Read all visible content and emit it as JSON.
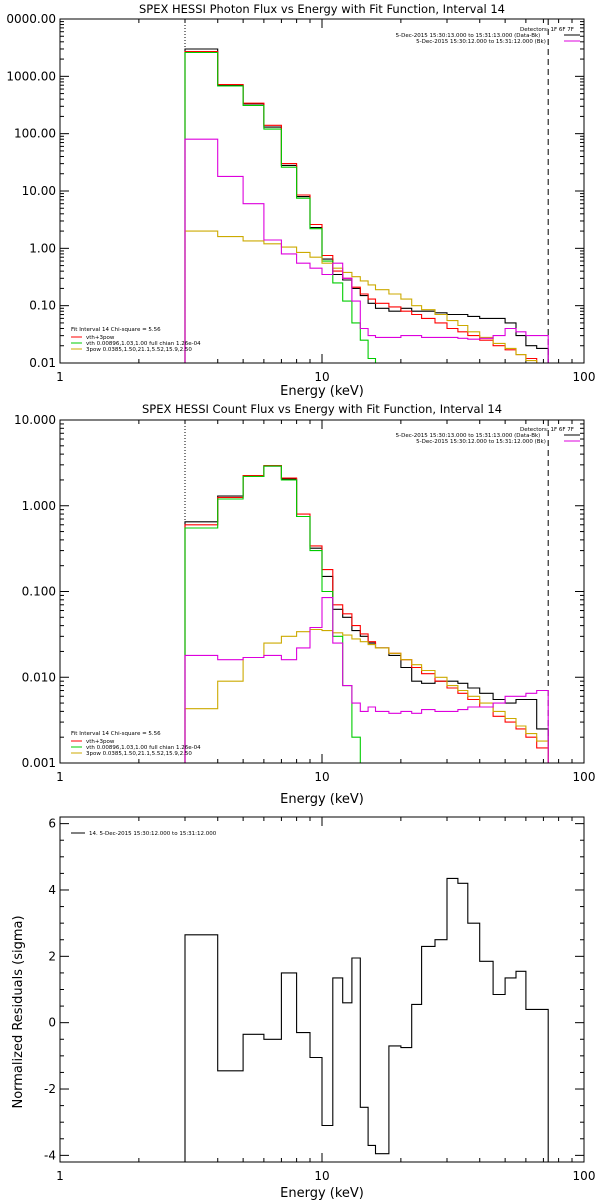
{
  "chart_data": [
    {
      "type": "line",
      "title": "SPEX HESSI Photon Flux vs Energy with Fit Function, Interval 14",
      "xlabel": "Energy (keV)",
      "ylabel": "",
      "x_scale": "log",
      "y_scale": "log",
      "xlim": [
        1,
        100
      ],
      "ylim": [
        0.01,
        10000
      ],
      "x_ticks": [
        "1",
        "10",
        "100"
      ],
      "y_ticks": [
        "0000.00",
        "1000.00",
        "100.00",
        "10.00",
        "1.00",
        "0.10",
        "0.01"
      ],
      "y_tick_values": [
        10000,
        1000,
        100,
        10,
        1,
        0.1,
        0.01
      ],
      "markers": [
        {
          "x": 3.0,
          "style": "dotted"
        },
        {
          "x": 73.0,
          "style": "dashed"
        }
      ],
      "legend_top": [
        "Detectors: 1F 6F 7F",
        "5-Dec-2015 15:30:13.000 to 15:31:13.000 (Data-Bk)",
        "5-Dec-2015 15:30:12.000 to 15:31:12.000 (Bk)"
      ],
      "legend_top_series": [
        null,
        "data",
        "bk"
      ],
      "legend_bottom": [
        "Fit Interval 14   Chi-square = 5.56",
        "vth+3pow",
        "vth 0.00896,1.03,1.00  full chian 1.26e-04",
        "3pow 0.0385,1.50,21.1,5.52,15.9,2.50"
      ],
      "legend_bottom_series": [
        null,
        "total",
        "vth",
        "3pow"
      ],
      "edges": [
        3.0,
        3.5,
        4.0,
        5.0,
        6.0,
        7.0,
        8.0,
        9.0,
        10.0,
        11.0,
        12.0,
        13.0,
        14.0,
        15.0,
        16.0,
        18.0,
        20.0,
        22.0,
        24.0,
        27.0,
        30.0,
        33.0,
        36.0,
        40.0,
        45.0,
        50.0,
        55.0,
        60.0,
        66.0,
        73.0
      ],
      "series": [
        {
          "key": "data",
          "color": "#000000",
          "values": [
            3000,
            3000,
            700,
            330,
            130,
            28,
            8.0,
            2.3,
            0.65,
            0.35,
            0.28,
            0.2,
            0.15,
            0.11,
            0.09,
            0.08,
            0.09,
            0.08,
            0.08,
            0.075,
            0.07,
            0.07,
            0.065,
            0.06,
            0.06,
            0.05,
            0.03,
            0.02,
            0.018
          ]
        },
        {
          "key": "total",
          "color": "#ff0000",
          "values": [
            2700,
            2700,
            720,
            340,
            140,
            30,
            8.5,
            2.6,
            0.75,
            0.4,
            0.3,
            0.21,
            0.16,
            0.13,
            0.11,
            0.095,
            0.08,
            0.07,
            0.06,
            0.05,
            0.04,
            0.035,
            0.03,
            0.025,
            0.02,
            0.017,
            0.014,
            0.012,
            0.01
          ]
        },
        {
          "key": "vth",
          "color": "#00cc00",
          "values": [
            2600,
            2600,
            680,
            310,
            120,
            26,
            7.5,
            2.2,
            0.6,
            0.25,
            0.12,
            0.05,
            0.025,
            0.012,
            0.0095,
            0.009,
            0.009,
            0.009,
            0.009,
            0.009,
            0.009,
            0.009,
            0.009,
            0.009,
            0.009,
            0.009,
            0.009,
            0.009,
            0.009
          ]
        },
        {
          "key": "3pow",
          "color": "#ccaa00",
          "values": [
            2.0,
            2.0,
            1.6,
            1.35,
            1.2,
            1.05,
            0.85,
            0.7,
            0.55,
            0.45,
            0.38,
            0.32,
            0.27,
            0.23,
            0.19,
            0.16,
            0.13,
            0.1,
            0.085,
            0.07,
            0.055,
            0.045,
            0.035,
            0.028,
            0.022,
            0.018,
            0.014,
            0.011,
            0.009
          ]
        },
        {
          "key": "bk",
          "color": "#dd00dd",
          "values": [
            80,
            80,
            18,
            6.0,
            1.4,
            0.8,
            0.55,
            0.45,
            0.35,
            0.55,
            0.3,
            0.12,
            0.04,
            0.03,
            0.028,
            0.028,
            0.03,
            0.03,
            0.028,
            0.028,
            0.028,
            0.027,
            0.026,
            0.027,
            0.03,
            0.04,
            0.035,
            0.03,
            0.03
          ]
        }
      ]
    },
    {
      "type": "line",
      "title": "SPEX HESSI Count Flux vs Energy with Fit Function, Interval 14",
      "xlabel": "Energy (keV)",
      "ylabel": "",
      "x_scale": "log",
      "y_scale": "log",
      "xlim": [
        1,
        100
      ],
      "ylim": [
        0.001,
        10
      ],
      "x_ticks": [
        "1",
        "10",
        "100"
      ],
      "y_ticks": [
        "10.000",
        "1.000",
        "0.100",
        "0.010",
        "0.001"
      ],
      "y_tick_values": [
        10,
        1,
        0.1,
        0.01,
        0.001
      ],
      "markers": [
        {
          "x": 3.0,
          "style": "dotted"
        },
        {
          "x": 73.0,
          "style": "dashed"
        }
      ],
      "legend_top": [
        "Detectors: 1F 6F 7F",
        "5-Dec-2015 15:30:13.000 to 15:31:13.000 (Data-Bk)",
        "5-Dec-2015 15:30:12.000 to 15:31:12.000 (Bk)"
      ],
      "legend_top_series": [
        null,
        "data",
        "bk"
      ],
      "legend_bottom": [
        "Fit Interval 14   Chi-square = 5.56",
        "vth+3pow",
        "vth 0.00896,1.03,1.00  full chian 1.26e-04",
        "3pow 0.0385,1.50,21.1,5.52,15.9,2.50"
      ],
      "legend_bottom_series": [
        null,
        "total",
        "vth",
        "3pow"
      ],
      "edges": [
        3.0,
        3.5,
        4.0,
        5.0,
        6.0,
        7.0,
        8.0,
        9.0,
        10.0,
        11.0,
        12.0,
        13.0,
        14.0,
        15.0,
        16.0,
        18.0,
        20.0,
        22.0,
        24.0,
        27.0,
        30.0,
        33.0,
        36.0,
        40.0,
        45.0,
        50.0,
        55.0,
        60.0,
        66.0,
        73.0
      ],
      "series": [
        {
          "key": "data",
          "color": "#000000",
          "values": [
            0.65,
            0.65,
            1.3,
            2.2,
            2.9,
            2.05,
            0.75,
            0.32,
            0.15,
            0.062,
            0.05,
            0.035,
            0.03,
            0.025,
            0.022,
            0.018,
            0.013,
            0.009,
            0.0085,
            0.009,
            0.009,
            0.0085,
            0.0075,
            0.0065,
            0.0055,
            0.005,
            0.0055,
            0.0055,
            0.0025
          ]
        },
        {
          "key": "total",
          "color": "#ff0000",
          "values": [
            0.6,
            0.6,
            1.25,
            2.25,
            2.95,
            2.1,
            0.8,
            0.34,
            0.18,
            0.07,
            0.055,
            0.04,
            0.032,
            0.026,
            0.022,
            0.019,
            0.016,
            0.013,
            0.011,
            0.009,
            0.0075,
            0.0065,
            0.0055,
            0.0045,
            0.0035,
            0.003,
            0.0025,
            0.002,
            0.0015
          ]
        },
        {
          "key": "vth",
          "color": "#00cc00",
          "values": [
            0.55,
            0.55,
            1.2,
            2.2,
            2.9,
            2.0,
            0.75,
            0.3,
            0.1,
            0.03,
            0.008,
            0.002,
            0.0008,
            0.0008,
            0.0008,
            0.0008,
            0.0008,
            0.0008,
            0.0008,
            0.0008,
            0.0008,
            0.0008,
            0.0008,
            0.0008,
            0.0008,
            0.0008,
            0.0008,
            0.0008,
            0.0008
          ]
        },
        {
          "key": "3pow",
          "color": "#ccaa00",
          "values": [
            0.0043,
            0.0043,
            0.009,
            0.017,
            0.025,
            0.03,
            0.034,
            0.036,
            0.035,
            0.033,
            0.031,
            0.028,
            0.026,
            0.024,
            0.022,
            0.019,
            0.016,
            0.014,
            0.012,
            0.01,
            0.008,
            0.007,
            0.006,
            0.005,
            0.004,
            0.0033,
            0.0027,
            0.0022,
            0.0018
          ]
        },
        {
          "key": "bk",
          "color": "#dd00dd",
          "values": [
            0.018,
            0.018,
            0.016,
            0.017,
            0.018,
            0.016,
            0.022,
            0.038,
            0.085,
            0.025,
            0.008,
            0.005,
            0.004,
            0.0045,
            0.004,
            0.0038,
            0.004,
            0.0038,
            0.0042,
            0.004,
            0.004,
            0.0042,
            0.0045,
            0.0045,
            0.005,
            0.006,
            0.006,
            0.0065,
            0.007
          ]
        }
      ]
    },
    {
      "type": "line",
      "title": "",
      "xlabel": "Energy (keV)",
      "ylabel": "Normalized Residuals (sigma)",
      "x_scale": "log",
      "y_scale": "linear",
      "xlim": [
        1,
        100
      ],
      "ylim": [
        -4.2,
        6.2
      ],
      "x_ticks": [
        "1",
        "10",
        "100"
      ],
      "y_ticks": [
        "6",
        "4",
        "2",
        "0",
        "-2",
        "-4"
      ],
      "y_tick_values": [
        6,
        4,
        2,
        0,
        -2,
        -4
      ],
      "legend": "14.  5-Dec-2015 15:30:12.000 to 15:31:12.000",
      "edges": [
        3.0,
        3.5,
        4.0,
        5.0,
        6.0,
        7.0,
        8.0,
        9.0,
        10.0,
        11.0,
        12.0,
        13.0,
        14.0,
        15.0,
        16.0,
        18.0,
        20.0,
        22.0,
        24.0,
        27.0,
        30.0,
        33.0,
        36.0,
        40.0,
        45.0,
        50.0,
        55.0,
        60.0,
        66.0,
        73.0
      ],
      "series": [
        {
          "key": "residuals",
          "color": "#000000",
          "values": [
            2.65,
            2.65,
            -1.45,
            -0.35,
            -0.5,
            1.5,
            -0.3,
            -1.05,
            -3.1,
            1.35,
            0.6,
            1.95,
            -2.55,
            -3.7,
            -3.95,
            -0.7,
            -0.75,
            0.55,
            2.3,
            2.5,
            4.35,
            4.2,
            3.0,
            1.85,
            0.85,
            1.35,
            1.55,
            0.4,
            0.4
          ]
        }
      ]
    }
  ]
}
